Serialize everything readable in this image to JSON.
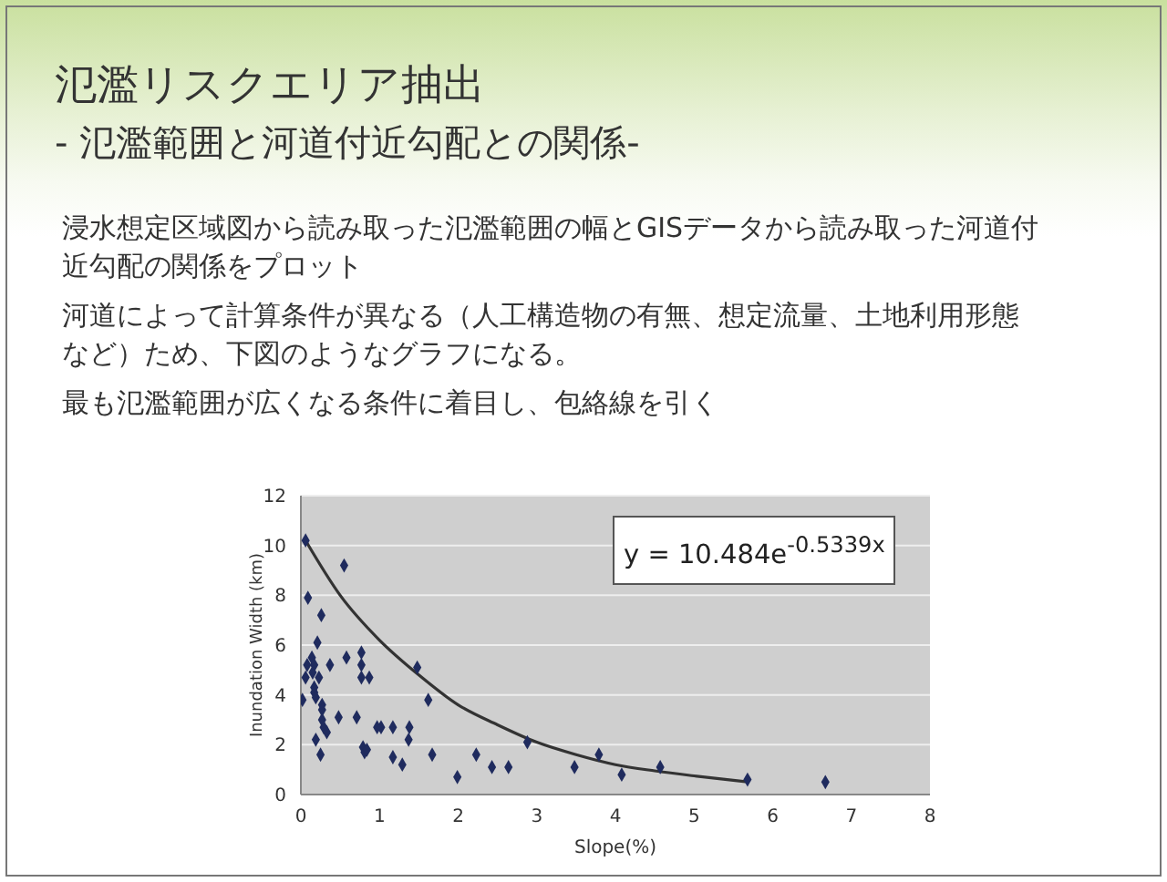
{
  "chart_data": {
    "type": "scatter",
    "title": "氾濫リスクエリア抽出",
    "subtitle": "- 氾濫範囲と河道付近勾配との関係-",
    "xlabel": "Slope(%)",
    "ylabel": "Inundation Width (km)",
    "annotations": [
      "浸水想定区域図から読み取った氾濫範囲の幅とGISデータから読み取った河道付近勾配の関係をプロット",
      "河道によって計算条件が異なる（人工構造物の有無、想定流量、土地利用形態など）ため、下図のようなグラフになる。",
      "最も氾濫範囲が広くなる条件に着目し、包絡線を引く",
      "y = 10.484e$^{-0.5339x}$"
    ],
    "xlim": [
      0,
      8
    ],
    "xticks": [
      0,
      1,
      2,
      3,
      4,
      5,
      6,
      7,
      8
    ],
    "ylim": [
      0,
      12
    ],
    "yticks": [
      0,
      2,
      4,
      6,
      8,
      10,
      12
    ],
    "grid": "y",
    "marker": "diamond",
    "series": [
      {
        "type": "scatter",
        "color": "#1f2b5e",
        "x": [
          0.06,
          0.55,
          0.09,
          0.26,
          0.21,
          0.14,
          0.08,
          0.17,
          0.15,
          0.06,
          0.23,
          0.17,
          0.17,
          0.19,
          0.02,
          0.27,
          0.27,
          0.27,
          0.29,
          0.33,
          0.19,
          0.25,
          0.37,
          0.48,
          0.58,
          0.71,
          0.77,
          0.77,
          0.77,
          0.87,
          0.79,
          0.81,
          0.84,
          0.97,
          1.02,
          1.17,
          1.38,
          1.37,
          1.17,
          1.29,
          1.48,
          1.62,
          1.67,
          1.99,
          2.23,
          2.43,
          2.64,
          2.88,
          3.48,
          3.79,
          4.08,
          4.57,
          5.68,
          6.67
        ],
        "values": [
          10.2,
          9.2,
          7.9,
          7.2,
          6.1,
          5.5,
          5.2,
          5.2,
          4.9,
          4.7,
          4.7,
          4.3,
          4.1,
          3.9,
          3.8,
          3.6,
          3.4,
          3.0,
          2.7,
          2.5,
          2.2,
          1.6,
          5.2,
          3.1,
          5.5,
          3.1,
          5.7,
          5.2,
          4.7,
          4.7,
          1.9,
          1.7,
          1.8,
          2.7,
          2.7,
          2.7,
          2.7,
          2.2,
          1.5,
          1.2,
          5.1,
          3.8,
          1.6,
          0.7,
          1.6,
          1.1,
          1.1,
          2.1,
          1.1,
          1.6,
          0.8,
          1.1,
          0.6,
          0.5
        ]
      },
      {
        "type": "line",
        "color": "#333333",
        "marker": "none",
        "line_style": "solid",
        "x": [
          0.06,
          0.5,
          1,
          1.5,
          2,
          2.5,
          3,
          3.5,
          4,
          4.5,
          5,
          5.7
        ],
        "values": [
          10.2,
          8.0,
          6.2,
          4.8,
          3.6,
          2.8,
          2.1,
          1.6,
          1.2,
          0.95,
          0.75,
          0.5
        ]
      }
    ]
  }
}
